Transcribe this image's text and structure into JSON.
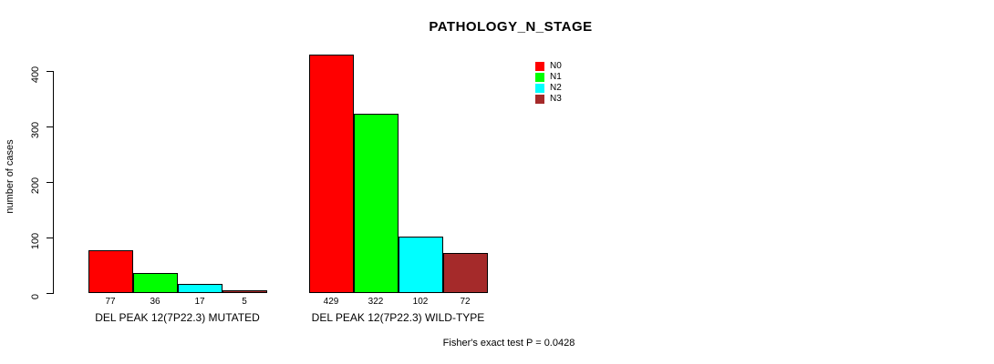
{
  "chart_data": {
    "type": "bar",
    "title": "PATHOLOGY_N_STAGE",
    "ylabel": "number of cases",
    "ylim": [
      0,
      430
    ],
    "yticks": [
      0,
      100,
      200,
      300,
      400
    ],
    "grid": false,
    "legend_position": "top-right",
    "groups": [
      "DEL PEAK 12(7P22.3) MUTATED",
      "DEL PEAK 12(7P22.3) WILD-TYPE"
    ],
    "series": [
      {
        "name": "N0",
        "color": "#FF0000",
        "values": [
          77,
          429
        ]
      },
      {
        "name": "N1",
        "color": "#00FF00",
        "values": [
          36,
          322
        ]
      },
      {
        "name": "N2",
        "color": "#00FFFF",
        "values": [
          17,
          102
        ]
      },
      {
        "name": "N3",
        "color": "#A52A2A",
        "values": [
          5,
          72
        ]
      }
    ],
    "bar_value_labels": [
      [
        77,
        36,
        17,
        5
      ],
      [
        429,
        322,
        102,
        72
      ]
    ],
    "annotation": "Fisher's exact test P = 0.0428"
  }
}
